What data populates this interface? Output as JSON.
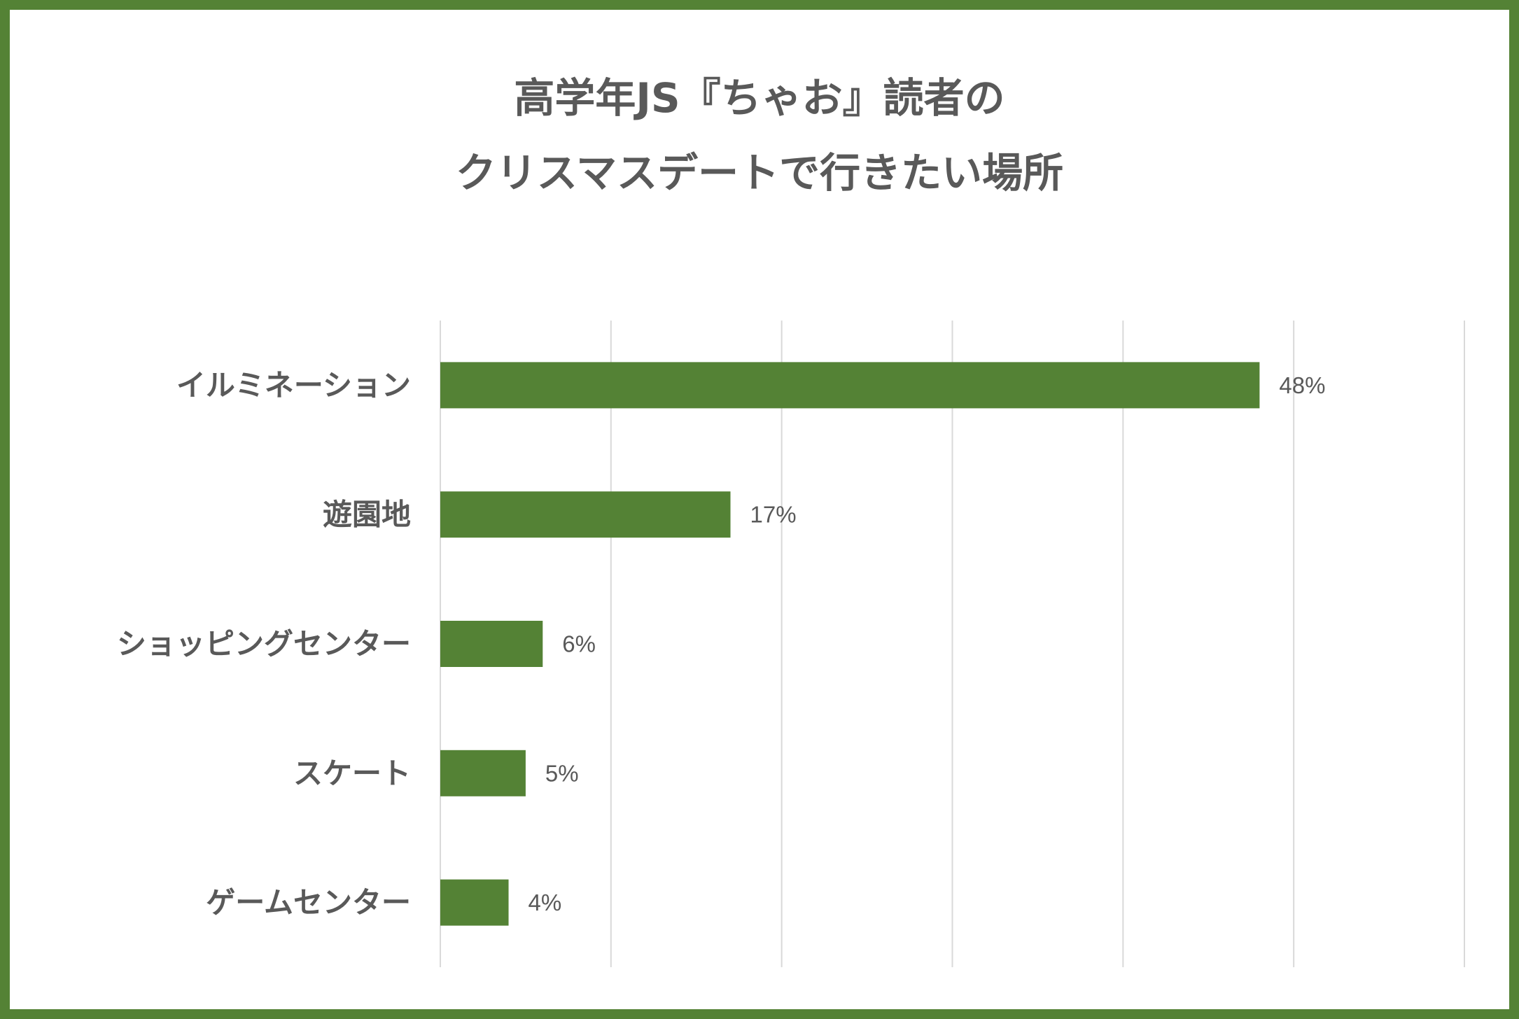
{
  "chart_data": {
    "type": "bar",
    "orientation": "horizontal",
    "title_lines": [
      "高学年JS『ちゃお』読者の",
      "クリスマスデートで行きたい場所"
    ],
    "categories": [
      "イルミネーション",
      "遊園地",
      "ショッピングセンター",
      "スケート",
      "ゲームセンター"
    ],
    "values": [
      48,
      17,
      6,
      5,
      4
    ],
    "value_labels": [
      "48%",
      "17%",
      "6%",
      "5%",
      "4%"
    ],
    "unit": "%",
    "xlim": [
      0,
      60
    ],
    "grid": true,
    "legend": "none",
    "bar_color": "#548235",
    "grid_color": "#d9d9d9",
    "text_color": "#595959",
    "frame_color": "#548235"
  }
}
